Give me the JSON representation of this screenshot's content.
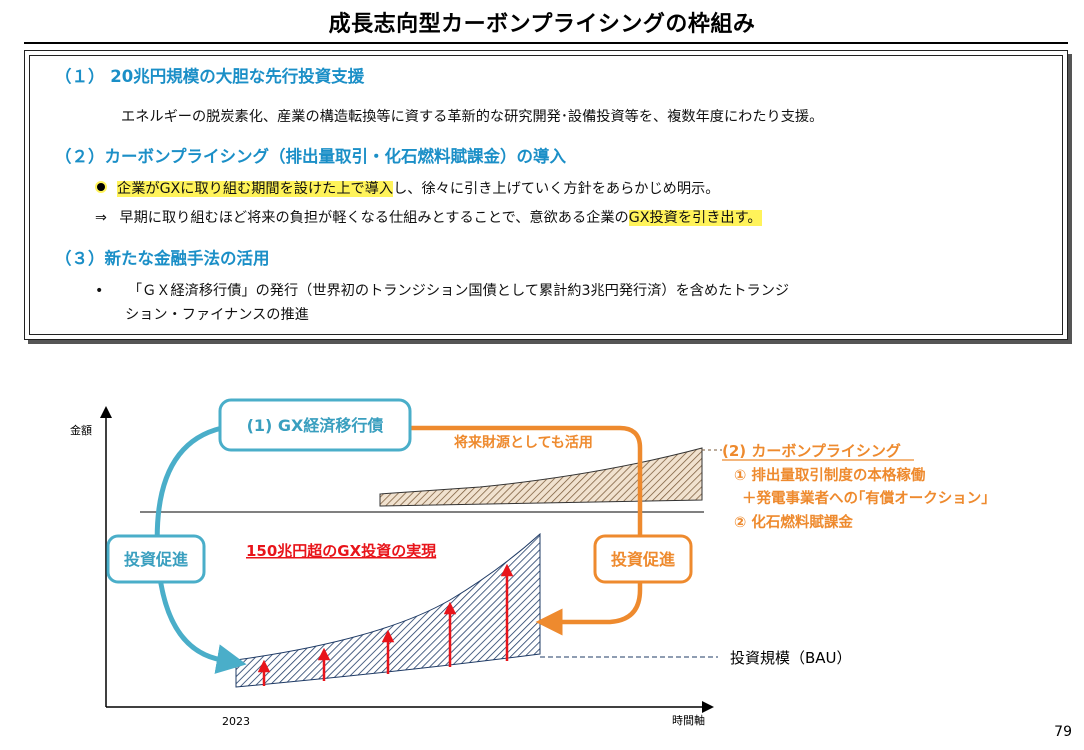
{
  "title": "成長志向型カーボンプライシングの枠組み",
  "sections": [
    {
      "heading": "（１） 20兆円規模の大胆な先行投資支援",
      "body": "エネルギーの脱炭素化、産業の構造転換等に資する革新的な研究開発･設備投資等を、複数年度にわたり支援。"
    },
    {
      "heading": "（２）カーボンプライシング（排出量取引・化石燃料賦課金）の導入",
      "line1_hl": "企業がGXに取り組む期間を設けた上で導入",
      "line1_rest": "し、徐々に引き上げていく方針をあらかじめ明示。",
      "line2_arrow": "⇒",
      "line2_text": "早期に取り組むほど将来の負担が軽くなる仕組みとすることで、意欲ある企業の",
      "line2_hl": "GX投資を引き出す。"
    },
    {
      "heading": "（３）新たな金融手法の活用",
      "bullet": "•",
      "line1": "「ＧＸ経済移行債」の発行（世界初のトランジション国債として累計約3兆円発行済）を含めたトランジ",
      "line2": "ション・ファイナンスの推進"
    }
  ],
  "diagram": {
    "y_axis_label": "金額",
    "x_axis_label": "時間軸",
    "x_start_label": "2023",
    "gx_bond_label": "(1) GX経済移行債",
    "future_funding_label": "将来財源としても活用",
    "invest_promo_left": "投資促進",
    "invest_promo_right": "投資促進",
    "gx_investment_label": "150兆円超のGX投資の実現",
    "bau_label": "投資規模（BAU）",
    "carbon_pricing": {
      "heading": "(2) カーボンプライシング",
      "item1": "①  排出量取引制度の本格稼働",
      "item1b": "＋発電事業者への｢有償オークション｣",
      "item2": "②  化石燃料賦課金"
    },
    "colors": {
      "teal": "#4aaec9",
      "orange": "#ee8a2e",
      "red": "#e8141a",
      "navy": "#1f3b66",
      "brown": "#7a5a3a"
    }
  },
  "page_number": "79"
}
